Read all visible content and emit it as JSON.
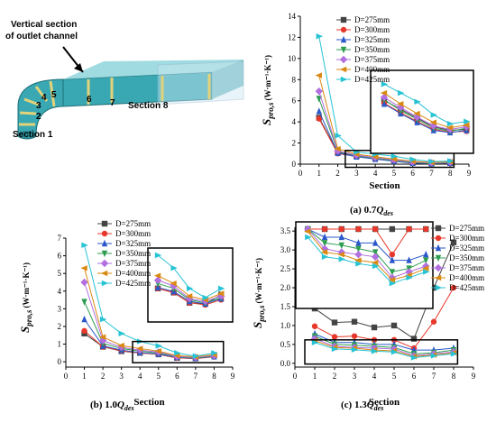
{
  "colors": {
    "D=275mm": "#444444",
    "D=300mm": "#e8382b",
    "D=325mm": "#2a57c9",
    "D=350mm": "#2d9e50",
    "D=375mm": "#b26fe0",
    "D=400mm": "#d98a12",
    "D=425mm": "#27c3d4"
  },
  "markers": {
    "D=275mm": "square",
    "D=300mm": "circle",
    "D=325mm": "triangle-up",
    "D=350mm": "triangle-down",
    "D=375mm": "diamond",
    "D=400mm": "triangle-left",
    "D=425mm": "triangle-right"
  },
  "schematic": {
    "title_line1": "Vertical section",
    "title_line2": "of outlet channel",
    "section1": "Section 1",
    "section8": "Section 8",
    "num_labels": [
      "2",
      "3",
      "4",
      "5",
      "6",
      "7"
    ]
  },
  "chart_data": [
    {
      "type": "line",
      "caption": "(a) 0.7",
      "caption_q": "Q",
      "caption_sub": "des",
      "xlabel": "Section",
      "ylabel_main": "S",
      "ylabel_sub": "pro,s",
      "ylabel_unit": "(W·m⁻¹·K⁻¹)",
      "xlim": [
        0,
        9
      ],
      "ylim": [
        0,
        14
      ],
      "yticks": [
        0,
        2,
        4,
        6,
        8,
        10,
        12,
        14
      ],
      "xticks": [
        0,
        1,
        2,
        3,
        4,
        5,
        6,
        7,
        8,
        9
      ],
      "legend_position": "top-right",
      "zoom_box": {
        "x": [
          2.4,
          8.2
        ],
        "y": [
          -0.3,
          1.3
        ]
      },
      "x": [
        1,
        2,
        3,
        4,
        5,
        6,
        7,
        8
      ],
      "series": [
        {
          "name": "D=275mm",
          "values": [
            4.4,
            1.1,
            0.78,
            0.58,
            0.38,
            0.18,
            0.1,
            0.12
          ]
        },
        {
          "name": "D=300mm",
          "values": [
            4.3,
            1.0,
            0.72,
            0.5,
            0.3,
            0.12,
            0.06,
            0.08
          ]
        },
        {
          "name": "D=325mm",
          "values": [
            5.0,
            1.05,
            0.7,
            0.48,
            0.28,
            0.1,
            0.05,
            0.1
          ]
        },
        {
          "name": "D=350mm",
          "values": [
            6.2,
            1.2,
            0.8,
            0.55,
            0.35,
            0.15,
            0.08,
            0.15
          ]
        },
        {
          "name": "D=375mm",
          "values": [
            6.9,
            1.25,
            0.85,
            0.62,
            0.4,
            0.2,
            0.12,
            0.18
          ]
        },
        {
          "name": "D=400mm",
          "values": [
            8.4,
            1.45,
            0.95,
            0.7,
            0.48,
            0.28,
            0.16,
            0.22
          ]
        },
        {
          "name": "D=425mm",
          "values": [
            12.1,
            2.7,
            1.15,
            0.95,
            0.75,
            0.45,
            0.25,
            0.3
          ]
        }
      ]
    },
    {
      "type": "line",
      "caption": "(b) 1.0",
      "caption_q": "Q",
      "caption_sub": "des",
      "xlabel": "Section",
      "ylabel_main": "S",
      "ylabel_sub": "pro,s",
      "ylabel_unit": "(W·m⁻¹·K⁻¹)",
      "xlim": [
        0,
        9
      ],
      "ylim": [
        -0.3,
        7
      ],
      "yticks": [
        0,
        1,
        2,
        3,
        4,
        5,
        6,
        7
      ],
      "xticks": [
        0,
        1,
        2,
        3,
        4,
        5,
        6,
        7,
        8,
        9
      ],
      "legend_position": "top-left",
      "zoom_box": {
        "x": [
          3.6,
          8.5
        ],
        "y": [
          -0.05,
          1.15
        ]
      },
      "x": [
        1,
        2,
        3,
        4,
        5,
        6,
        7,
        8
      ],
      "series": [
        {
          "name": "D=275mm",
          "values": [
            1.6,
            0.85,
            0.6,
            0.5,
            0.42,
            0.22,
            0.2,
            0.38
          ]
        },
        {
          "name": "D=300mm",
          "values": [
            1.75,
            0.85,
            0.62,
            0.5,
            0.42,
            0.22,
            0.18,
            0.28
          ]
        },
        {
          "name": "D=325mm",
          "values": [
            2.4,
            0.9,
            0.66,
            0.52,
            0.44,
            0.25,
            0.2,
            0.3
          ]
        },
        {
          "name": "D=350mm",
          "values": [
            3.4,
            1.05,
            0.75,
            0.6,
            0.5,
            0.28,
            0.22,
            0.32
          ]
        },
        {
          "name": "D=375mm",
          "values": [
            4.5,
            1.2,
            0.82,
            0.66,
            0.55,
            0.3,
            0.25,
            0.35
          ]
        },
        {
          "name": "D=400mm",
          "values": [
            5.3,
            1.4,
            0.92,
            0.75,
            0.6,
            0.35,
            0.28,
            0.4
          ]
        },
        {
          "name": "D=425mm",
          "values": [
            6.6,
            2.4,
            1.6,
            1.15,
            0.9,
            0.5,
            0.32,
            0.5
          ]
        }
      ]
    },
    {
      "type": "line",
      "caption": "(c) 1.3",
      "caption_q": "Q",
      "caption_sub": "des",
      "xlabel": "Section",
      "ylabel_main": "S",
      "ylabel_sub": "pro,s",
      "ylabel_unit": "(W·m⁻¹·K⁻¹)",
      "xlim": [
        0,
        9
      ],
      "ylim": [
        -0.1,
        3.6
      ],
      "yticks": [
        0.0,
        0.5,
        1.0,
        1.5,
        2.0,
        2.5,
        3.0,
        3.5
      ],
      "xticks": [
        0,
        1,
        2,
        3,
        4,
        5,
        6,
        7,
        8,
        9
      ],
      "legend_position": "top-right",
      "zoom_box": {
        "x": [
          0.5,
          8.2
        ],
        "y": [
          -0.02,
          0.62
        ]
      },
      "x": [
        1,
        2,
        3,
        4,
        5,
        6,
        7,
        8
      ],
      "series": [
        {
          "name": "D=275mm",
          "values": [
            1.45,
            1.08,
            1.1,
            0.95,
            1.0,
            0.65,
            2.0,
            3.2
          ]
        },
        {
          "name": "D=300mm",
          "values": [
            0.98,
            0.7,
            0.72,
            0.62,
            0.62,
            0.4,
            1.1,
            2.0
          ]
        },
        {
          "name": "D=325mm",
          "values": [
            0.78,
            0.55,
            0.55,
            0.5,
            0.5,
            0.35,
            0.35,
            0.4
          ]
        },
        {
          "name": "D=350mm",
          "values": [
            0.72,
            0.5,
            0.48,
            0.45,
            0.42,
            0.25,
            0.28,
            0.35
          ]
        },
        {
          "name": "D=375mm",
          "values": [
            0.65,
            0.45,
            0.42,
            0.4,
            0.38,
            0.2,
            0.25,
            0.3
          ]
        },
        {
          "name": "D=400mm",
          "values": [
            0.6,
            0.42,
            0.4,
            0.35,
            0.33,
            0.18,
            0.22,
            0.28
          ]
        },
        {
          "name": "D=425mm",
          "values": [
            0.55,
            0.38,
            0.36,
            0.32,
            0.3,
            0.15,
            0.2,
            0.25
          ]
        }
      ]
    }
  ]
}
